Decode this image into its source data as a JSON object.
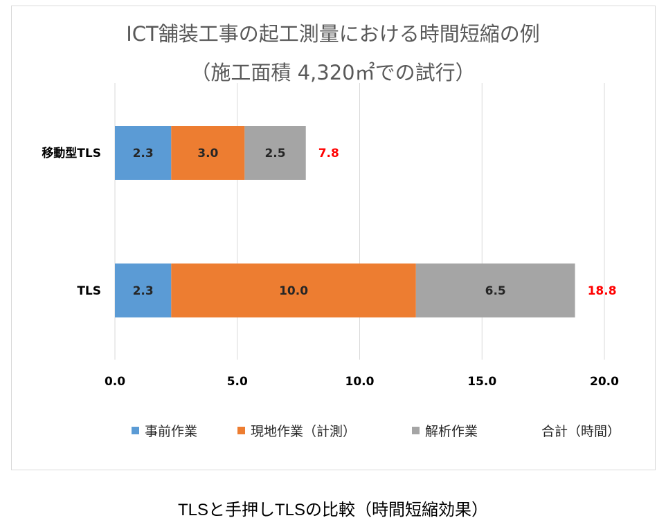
{
  "chart_data": {
    "type": "bar",
    "orientation": "horizontal",
    "stacked": true,
    "title": "ICT舗装工事の起工測量における時間短縮の例",
    "subtitle": "（施工面積 4,320㎡での試行）",
    "categories": [
      "移動型TLS",
      "TLS"
    ],
    "series": [
      {
        "name": "事前作業",
        "values": [
          2.3,
          2.3
        ],
        "color": "#5b9bd5"
      },
      {
        "name": "現地作業（計測）",
        "values": [
          3.0,
          10.0
        ],
        "color": "#ed7d31"
      },
      {
        "name": "解析作業",
        "values": [
          2.5,
          6.5
        ],
        "color": "#a5a5a5"
      }
    ],
    "totals": {
      "name": "合計（時間）",
      "values": [
        7.8,
        18.8
      ],
      "color": "#ff0000"
    },
    "xlim": [
      0,
      20
    ],
    "xticks": [
      "0.0",
      "5.0",
      "10.0",
      "15.0",
      "20.0"
    ],
    "grid": true,
    "legend_position": "bottom"
  },
  "caption": "TLSと手押しTLSの比較（時間短縮効果）"
}
